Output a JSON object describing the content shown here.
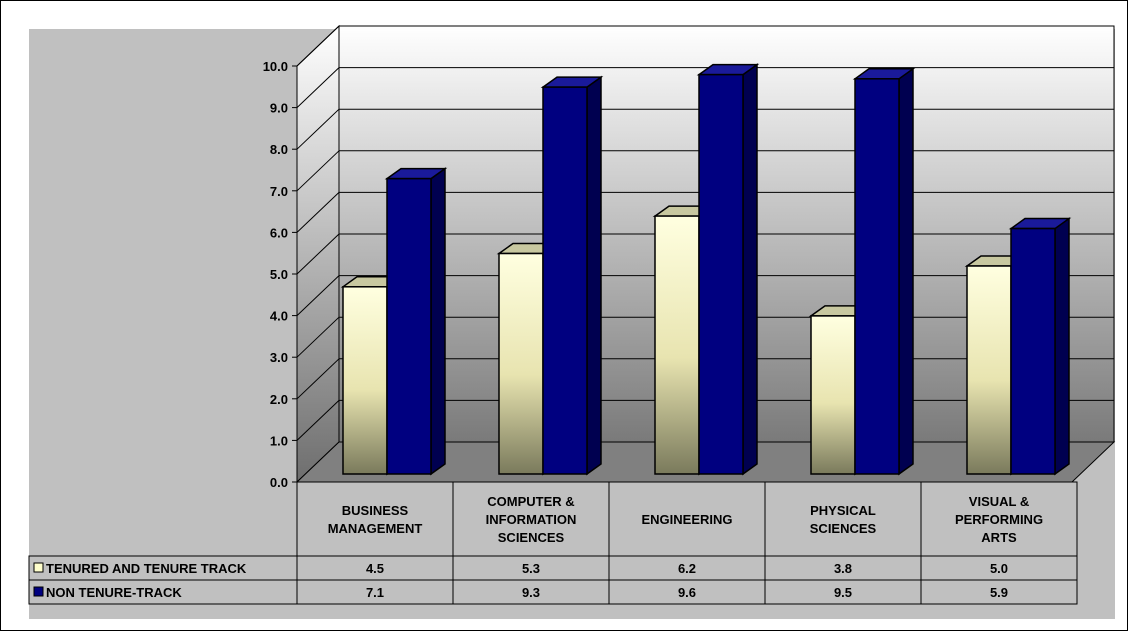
{
  "chart_data": {
    "type": "bar",
    "categories": [
      [
        "BUSINESS",
        "MANAGEMENT"
      ],
      [
        "COMPUTER &",
        "INFORMATION",
        "SCIENCES"
      ],
      [
        "ENGINEERING"
      ],
      [
        "PHYSICAL",
        "SCIENCES"
      ],
      [
        "VISUAL &",
        "PERFORMING",
        "ARTS"
      ]
    ],
    "series": [
      {
        "name": "TENURED AND TENURE TRACK",
        "values": [
          4.5,
          5.3,
          6.2,
          3.8,
          5.0
        ],
        "labels": [
          "4.5",
          "5.3",
          "6.2",
          "3.8",
          "5.0"
        ],
        "color": "#FFFFCC"
      },
      {
        "name": "NON TENURE-TRACK",
        "values": [
          7.1,
          9.3,
          9.6,
          9.5,
          5.9
        ],
        "labels": [
          "7.1",
          "9.3",
          "9.6",
          "9.5",
          "5.9"
        ],
        "color": "#000080"
      }
    ],
    "y_ticks": [
      "0.0",
      "1.0",
      "2.0",
      "3.0",
      "4.0",
      "5.0",
      "6.0",
      "7.0",
      "8.0",
      "9.0",
      "10.0"
    ],
    "ylim": [
      0,
      10
    ],
    "grid": true,
    "legend": "data-table",
    "colors": {
      "outer_bg": "#C0C0C0",
      "wall_top": "#FFFFFF",
      "wall_bottom": "#808080",
      "floor": "#808080"
    }
  }
}
